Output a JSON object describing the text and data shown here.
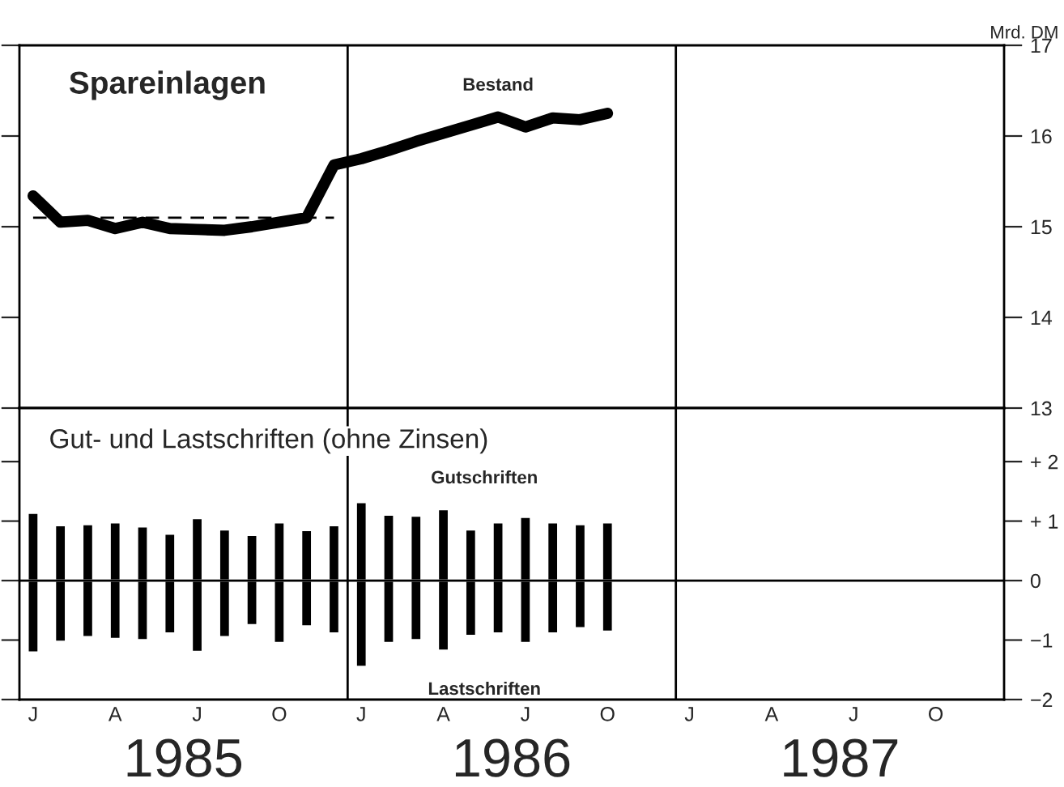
{
  "chart_data": [
    {
      "type": "line",
      "title": "Spareinlagen",
      "ylabel": "Mrd. DM",
      "ylim": [
        13,
        17
      ],
      "yticks": [
        13,
        14,
        15,
        16,
        17
      ],
      "tick_labels": "y",
      "grid": false,
      "categories": [
        null,
        null,
        null,
        null,
        null,
        null,
        null,
        null,
        null,
        null,
        null,
        null,
        null,
        null,
        null,
        null,
        null,
        null,
        null,
        null,
        null,
        null,
        null,
        null,
        null,
        null,
        null,
        null,
        null,
        null,
        null,
        null,
        null,
        null,
        null,
        null
      ],
      "series": [
        {
          "name": "Bestand",
          "color": "#000000",
          "line_style": "solid",
          "values": [
            15.34,
            15.05,
            15.07,
            14.98,
            15.05,
            14.98,
            14.97,
            14.96,
            15.0,
            15.05,
            15.1,
            15.68,
            15.75,
            15.84,
            15.94,
            16.03,
            16.12,
            16.21,
            16.1,
            16.2,
            16.18,
            16.25,
            null,
            null,
            null,
            null,
            null,
            null,
            null,
            null,
            null,
            null,
            null,
            null,
            null,
            null
          ]
        },
        {
          "color": "#000000",
          "line_style": "dashed",
          "values": [
            15.1,
            15.1,
            15.1,
            15.1,
            15.1,
            15.1,
            15.1,
            15.1,
            15.1,
            15.1,
            15.1,
            15.1,
            null,
            null,
            null,
            null,
            null,
            null,
            null,
            null,
            null,
            null,
            null,
            null,
            null,
            null,
            null,
            null,
            null,
            null,
            null,
            null,
            null,
            null,
            null,
            null
          ]
        }
      ]
    },
    {
      "type": "bar",
      "title": "Gut- und Lastschriften (ohne Zinsen)",
      "ylim": [
        -2,
        2.9
      ],
      "stacked": true,
      "yticks": [
        {
          "value": 2,
          "label": "+ 2"
        },
        {
          "value": 1,
          "label": "+ 1"
        },
        0,
        {
          "value": -1,
          "label": "−1"
        },
        {
          "value": -2,
          "label": "−2"
        }
      ],
      "categories": [
        "J",
        null,
        null,
        "A",
        null,
        null,
        "J",
        null,
        null,
        "O",
        null,
        null,
        "J",
        null,
        null,
        "A",
        null,
        null,
        "J",
        null,
        null,
        "O",
        null,
        null,
        "J",
        null,
        null,
        "A",
        null,
        null,
        "J",
        null,
        null,
        "O",
        null,
        null
      ],
      "annotations": [
        "1985",
        "1986",
        "1987"
      ],
      "grid": false,
      "series": [
        {
          "name": "Gutschriften",
          "color": "#000000",
          "values": [
            1.14,
            0.93,
            0.95,
            0.98,
            0.91,
            0.79,
            1.05,
            0.86,
            0.77,
            0.98,
            0.85,
            0.93,
            1.32,
            1.11,
            1.09,
            1.2,
            0.86,
            0.98,
            1.07,
            0.98,
            0.95,
            0.98,
            null,
            null,
            null,
            null,
            null,
            null,
            null,
            null,
            null,
            null,
            null,
            null,
            null,
            null
          ]
        },
        {
          "name": "Lastschriften",
          "color": "#000000",
          "values": [
            -1.21,
            -1.03,
            -0.95,
            -0.98,
            -1.0,
            -0.89,
            -1.2,
            -0.95,
            -0.75,
            -1.05,
            -0.77,
            -0.89,
            -1.45,
            -1.05,
            -1.0,
            -1.18,
            -0.93,
            -0.89,
            -1.05,
            -0.89,
            -0.8,
            -0.86,
            null,
            null,
            null,
            null,
            null,
            null,
            null,
            null,
            null,
            null,
            null,
            null,
            null,
            null
          ]
        }
      ],
      "ref_lines": [
        {
          "axis": "y",
          "value": 0,
          "color": "#000000"
        }
      ]
    }
  ]
}
